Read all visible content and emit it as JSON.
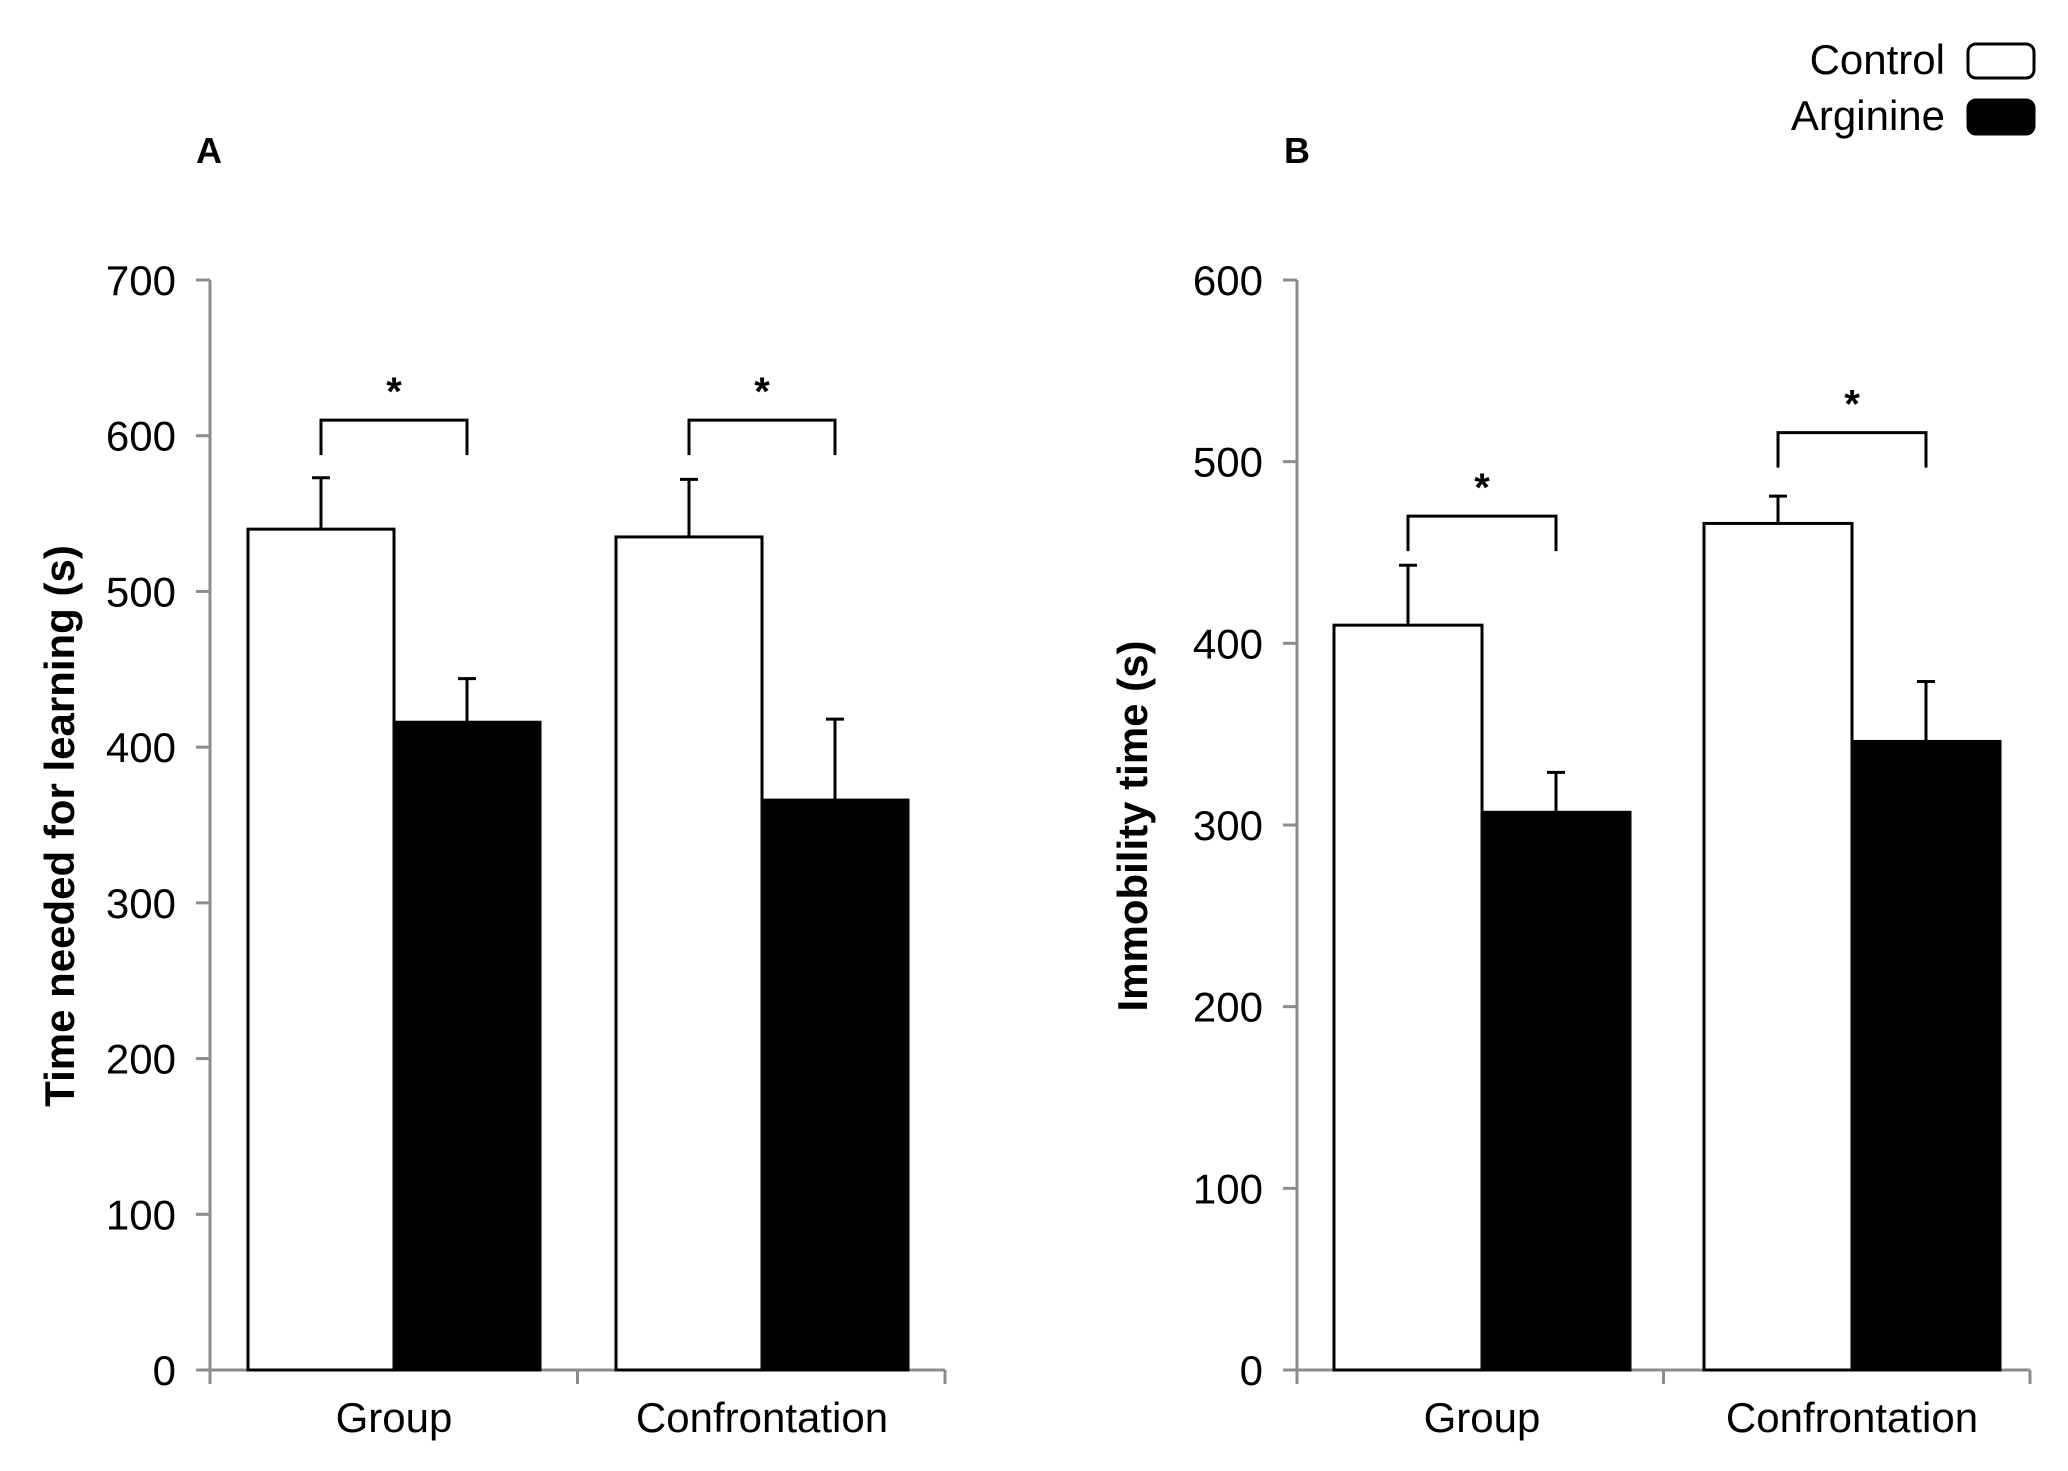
{
  "legend": {
    "entries": [
      {
        "label": "Control",
        "fill": "#ffffff"
      },
      {
        "label": "Arginine",
        "fill": "#000000"
      }
    ]
  },
  "chart_data": [
    {
      "type": "bar",
      "panel_label": "A",
      "title": "",
      "xlabel": "",
      "ylabel": "Time needed for learning (s)",
      "categories": [
        "Group",
        "Confrontation"
      ],
      "ylim": [
        0,
        700
      ],
      "yticks": [
        0,
        100,
        200,
        300,
        400,
        500,
        600,
        700
      ],
      "series": [
        {
          "name": "Control",
          "values": [
            540,
            535
          ],
          "errors": [
            33,
            37
          ]
        },
        {
          "name": "Arginine",
          "values": [
            416,
            366
          ],
          "errors": [
            28,
            52
          ]
        }
      ],
      "significance": [
        {
          "category": 0,
          "label": "*",
          "level": 610
        },
        {
          "category": 1,
          "label": "*",
          "level": 610
        }
      ],
      "grid": false
    },
    {
      "type": "bar",
      "panel_label": "B",
      "title": "",
      "xlabel": "",
      "ylabel": "Immobility time (s)",
      "categories": [
        "Group",
        "Confrontation"
      ],
      "ylim": [
        0,
        600
      ],
      "yticks": [
        0,
        100,
        200,
        300,
        400,
        500,
        600
      ],
      "series": [
        {
          "name": "Control",
          "values": [
            410,
            466
          ],
          "errors": [
            33,
            15
          ]
        },
        {
          "name": "Arginine",
          "values": [
            307,
            346
          ],
          "errors": [
            22,
            33
          ]
        }
      ],
      "significance": [
        {
          "category": 0,
          "label": "*",
          "level": 470
        },
        {
          "category": 1,
          "label": "*",
          "level": 516
        }
      ],
      "grid": false
    }
  ]
}
